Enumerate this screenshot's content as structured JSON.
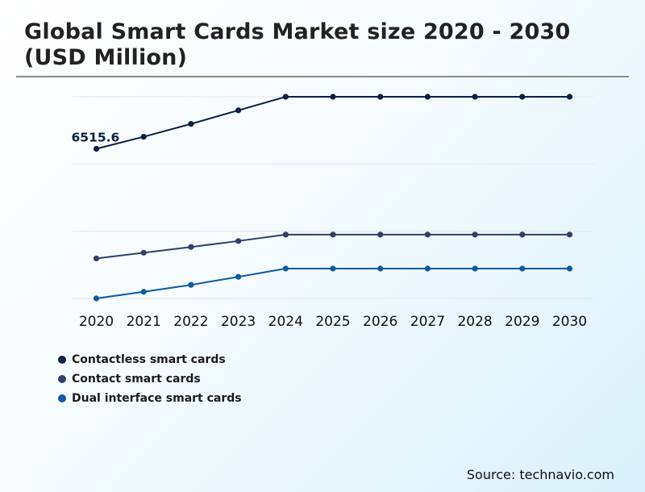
{
  "title": "Global Smart Cards Market size 2020 - 2030 (USD Million)",
  "source": "Source: technavio.com",
  "colors": {
    "contactless": "#0d1f45",
    "contact": "#2e3f6b",
    "dual": "#0f5aa0",
    "grid": "#e4e4e4"
  },
  "chart_data": {
    "type": "line",
    "title": "Global Smart Cards Market size 2020 - 2030 (USD Million)",
    "xlabel": "",
    "ylabel": "",
    "categories": [
      "2020",
      "2021",
      "2022",
      "2023",
      "2024",
      "2025",
      "2026",
      "2027",
      "2028",
      "2029",
      "2030"
    ],
    "ylim": [
      0,
      12000
    ],
    "grid": true,
    "y_axis_labels_visible": false,
    "series": [
      {
        "name": "Contactless smart cards",
        "color": "#0d1f45",
        "values": [
          6515.6,
          7040,
          7600,
          8190,
          8780,
          8780,
          8780,
          8780,
          8780,
          8780,
          8780
        ]
      },
      {
        "name": "Contact smart cards",
        "color": "#2e3f6b",
        "values": [
          1740,
          1990,
          2240,
          2500,
          2780,
          2780,
          2780,
          2780,
          2780,
          2780,
          2780
        ]
      },
      {
        "name": "Dual interface smart cards",
        "color": "#0f5aa0",
        "values": [
          0,
          290,
          590,
          940,
          1300,
          1300,
          1300,
          1300,
          1300,
          1300,
          1300
        ]
      }
    ],
    "annotations": [
      {
        "series": 0,
        "index": 0,
        "text": "6515.6"
      }
    ],
    "legend": "bottom-left"
  }
}
